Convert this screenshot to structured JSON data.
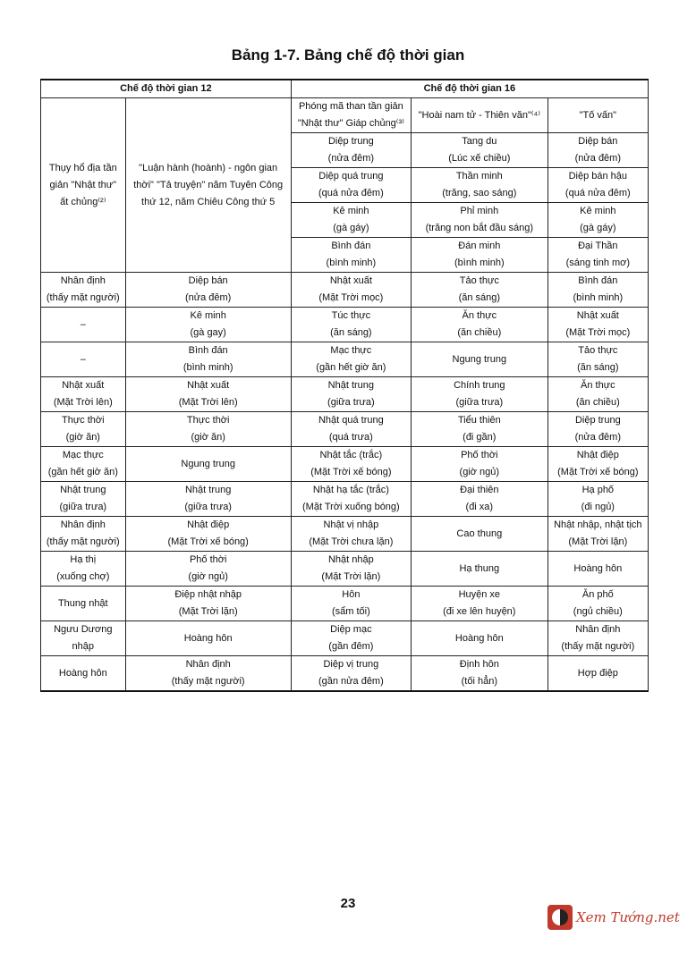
{
  "title": "Bảng 1-7. Bảng chế độ thời gian",
  "headers": {
    "left": "Chế độ thời gian 12",
    "right": "Chế độ thời gian 16"
  },
  "left_top": {
    "col1": [
      "Thụy hổ địa tần",
      "giản \"Nhật thư\"",
      "ất chủng⁽²⁾"
    ],
    "col2": [
      "\"Luận hành (hoành) - ngôn gian",
      "thời\" \"Tả truyện\" năm Tuyên Công",
      "thứ 12, năm Chiêu Công thứ 5"
    ]
  },
  "sub_headers": [
    [
      "Phóng mã than tần giản",
      "\"Nhật thư\" Giáp chủng⁽³⁾"
    ],
    [
      "\"Hoài nam tử - Thiên văn\"⁽⁴⁾"
    ],
    [
      "\"Tố vấn\""
    ]
  ],
  "top_rows": [
    [
      [
        "Diệp trung",
        "(nửa đêm)"
      ],
      [
        "Tang du",
        "(Lúc xế chiều)"
      ],
      [
        "Diệp bán",
        "(nửa đêm)"
      ]
    ],
    [
      [
        "Diệp quá trung",
        "(quá nửa đêm)"
      ],
      [
        "Thần minh",
        "(trăng, sao sáng)"
      ],
      [
        "Diệp bán hậu",
        "(quá nửa đêm)"
      ]
    ],
    [
      [
        "Kê minh",
        "(gà gáy)"
      ],
      [
        "Phỉ minh",
        "(trăng non bắt đầu sáng)"
      ],
      [
        "Kê minh",
        "(gà gáy)"
      ]
    ],
    [
      [
        "Bình đán",
        "(bình minh)"
      ],
      [
        "Đán minh",
        "(bình minh)"
      ],
      [
        "Đại Thần",
        "(sáng tinh mơ)"
      ]
    ]
  ],
  "rows": [
    [
      [
        "Nhân định",
        "(thấy mặt người)"
      ],
      [
        "Diệp bán",
        "(nửa đêm)"
      ],
      [
        "Nhật xuất",
        "(Mặt Trời mọc)"
      ],
      [
        "Tảo thực",
        "(ăn sáng)"
      ],
      [
        "Bình đán",
        "(bình minh)"
      ]
    ],
    [
      [
        "–"
      ],
      [
        "Kê minh",
        "(gà gay)"
      ],
      [
        "Túc thực",
        "(ăn sáng)"
      ],
      [
        "Ăn thực",
        "(ăn chiều)"
      ],
      [
        "Nhật xuất",
        "(Mặt Trời mọc)"
      ]
    ],
    [
      [
        "–"
      ],
      [
        "Bình đán",
        "(bình minh)"
      ],
      [
        "Mạc thực",
        "(gần hết giờ ăn)"
      ],
      [
        "Ngung trung"
      ],
      [
        "Tảo thực",
        "(ăn sáng)"
      ]
    ],
    [
      [
        "Nhật xuất",
        "(Mặt Trời lên)"
      ],
      [
        "Nhật xuất",
        "(Mặt Trời lên)"
      ],
      [
        "Nhật trung",
        "(giữa trưa)"
      ],
      [
        "Chính trung",
        "(giữa trưa)"
      ],
      [
        "Ăn thực",
        "(ăn chiều)"
      ]
    ],
    [
      [
        "Thực thời",
        "(giờ ăn)"
      ],
      [
        "Thực thời",
        "(giờ ăn)"
      ],
      [
        "Nhật quá trung",
        "(quá trưa)"
      ],
      [
        "Tiểu thiên",
        "(đi gần)"
      ],
      [
        "Diệp trung",
        "(nửa đêm)"
      ]
    ],
    [
      [
        "Mạc thực",
        "(gần hết giờ ăn)"
      ],
      [
        "Ngung trung"
      ],
      [
        "Nhật tắc (trắc)",
        "(Mặt Trời xế bóng)"
      ],
      [
        "Phố thời",
        "(giờ ngủ)"
      ],
      [
        "Nhật điệp",
        "(Mặt Trời xế bóng)"
      ]
    ],
    [
      [
        "Nhật trung",
        "(giữa trưa)"
      ],
      [
        "Nhật trung",
        "(giữa trưa)"
      ],
      [
        "Nhật hạ tắc (trắc)",
        "(Mặt Trời xuống bóng)"
      ],
      [
        "Đại thiên",
        "(đi xa)"
      ],
      [
        "Hạ phố",
        "(đi ngủ)"
      ]
    ],
    [
      [
        "Nhân định",
        "(thấy mặt người)"
      ],
      [
        "Nhật điệp",
        "(Mặt Trời xế bóng)"
      ],
      [
        "Nhật vị nhập",
        "(Mặt Trời chưa lặn)"
      ],
      [
        "Cao thung"
      ],
      [
        "Nhật nhập, nhật tịch",
        "(Mặt Trời lặn)"
      ]
    ],
    [
      [
        "Hạ thị",
        "(xuống chợ)"
      ],
      [
        "Phố thời",
        "(giờ ngủ)"
      ],
      [
        "Nhật nhập",
        "(Mặt Trời lặn)"
      ],
      [
        "Hạ thung"
      ],
      [
        "Hoàng hôn"
      ]
    ],
    [
      [
        "Thung nhật"
      ],
      [
        "Điệp nhật nhập",
        "(Mặt Trời lặn)"
      ],
      [
        "Hôn",
        "(sẩm tối)"
      ],
      [
        "Huyện xe",
        "(đi xe lên huyện)"
      ],
      [
        "Ăn phố",
        "(ngủ chiều)"
      ]
    ],
    [
      [
        "Ngưu Dương",
        "nhập"
      ],
      [
        "Hoàng hôn"
      ],
      [
        "Diệp mạc",
        "(gần đêm)"
      ],
      [
        "Hoàng hôn"
      ],
      [
        "Nhân định",
        "(thấy mặt người)"
      ]
    ],
    [
      [
        "Hoàng hôn"
      ],
      [
        "Nhân định",
        "(thấy mặt người)"
      ],
      [
        "Diệp vị trung",
        "(gần nửa đêm)"
      ],
      [
        "Định hôn",
        "(tối hẳn)"
      ],
      [
        "Hợp điệp"
      ]
    ]
  ],
  "page_number": "23",
  "watermark": "Xem Tướng.net"
}
